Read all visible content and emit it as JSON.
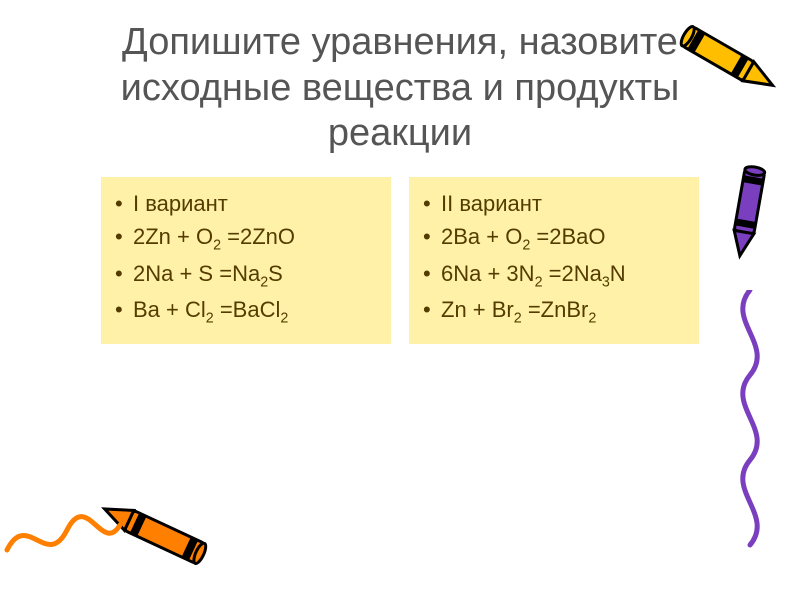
{
  "title": "Допишите уравнения, назовите исходные вещества и продукты реакции",
  "left": {
    "bg": "#fff2a8",
    "text": "#543c00",
    "heading": "I вариант",
    "items": [
      "2Zn + O₂ =2ZnO",
      "2Na + S =Na₂S",
      "Ba + Cl₂ =BaCl₂"
    ]
  },
  "right": {
    "bg": "#fff2a8",
    "text": "#543c00",
    "heading": "II вариант",
    "items": [
      "2Ba + O₂ =2BaO",
      "6Na + 3N₂ =2Na₃N",
      "Zn + Br₂ =ZnBr₂"
    ]
  },
  "crayons": {
    "top_right": {
      "body": "#ffbf00",
      "band": "#000000",
      "tip": "#ffbf00"
    },
    "right": {
      "body": "#7a3fbf",
      "band": "#000000",
      "tip": "#7a3fbf"
    },
    "bottom_left": {
      "body": "#ff7f00",
      "band": "#000000",
      "tip": "#ff7f00"
    }
  },
  "squiggles": {
    "right": "#7a3fbf",
    "bottom_left": "#ff7f00"
  }
}
